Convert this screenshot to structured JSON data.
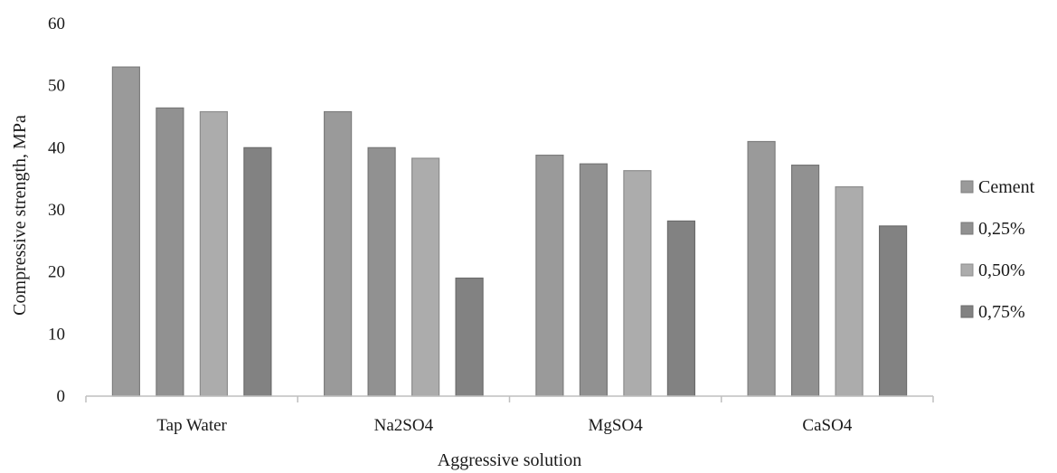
{
  "chart_data": {
    "type": "bar",
    "title": "",
    "xlabel": "Aggressive solution",
    "ylabel": "Compressive strength, MPa",
    "ylim": [
      0,
      60
    ],
    "yticks": [
      0,
      10,
      20,
      30,
      40,
      50,
      60
    ],
    "grid": false,
    "legend_position": "right",
    "categories": [
      "Tap Water",
      "Na2SO4",
      "MgSO4",
      "CaSO4"
    ],
    "series": [
      {
        "name": "Cement",
        "values": [
          53,
          45.8,
          38.8,
          41
        ],
        "color": "#9a9a9a"
      },
      {
        "name": "0,25%",
        "values": [
          46.4,
          40,
          37.4,
          37.2
        ],
        "color": "#919191"
      },
      {
        "name": "0,50%",
        "values": [
          45.8,
          38.3,
          36.3,
          33.7
        ],
        "color": "#acacac"
      },
      {
        "name": "0,75%",
        "values": [
          40,
          19,
          28.2,
          27.4
        ],
        "color": "#828282"
      }
    ]
  }
}
